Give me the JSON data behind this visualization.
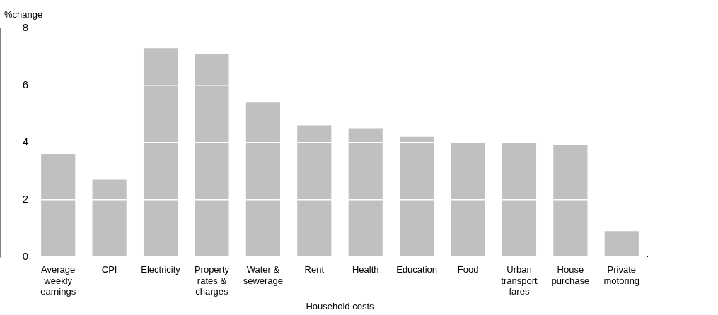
{
  "chart_data": {
    "type": "bar",
    "xlabel": "Household costs",
    "ylabel": "%change",
    "categories": [
      "Average weekly earnings",
      "CPI",
      "Electricity",
      "Property rates & charges",
      "Water & sewerage",
      "Rent",
      "Health",
      "Education",
      "Food",
      "Urban transport fares",
      "House purchase",
      "Private motoring"
    ],
    "values": [
      3.6,
      2.7,
      7.3,
      7.1,
      5.4,
      4.6,
      4.5,
      4.2,
      4.0,
      4.0,
      3.9,
      0.9
    ],
    "color": "#c0c0c0",
    "ylim": [
      0,
      8
    ],
    "yticks": [
      0,
      2,
      4,
      6,
      8
    ],
    "grid": "y",
    "legend": false
  }
}
